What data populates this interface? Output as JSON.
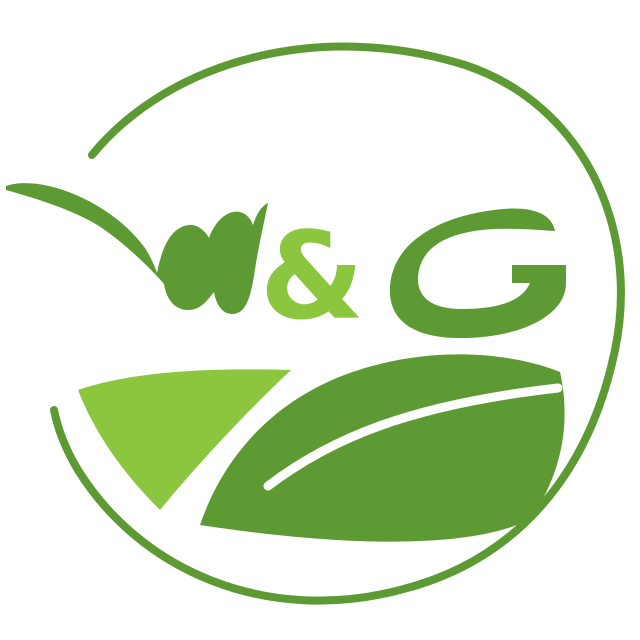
{
  "logo": {
    "text": "W&G",
    "colors": {
      "primary_green": "#5e9a33",
      "light_green": "#8cc63f",
      "background": "#ffffff"
    }
  }
}
